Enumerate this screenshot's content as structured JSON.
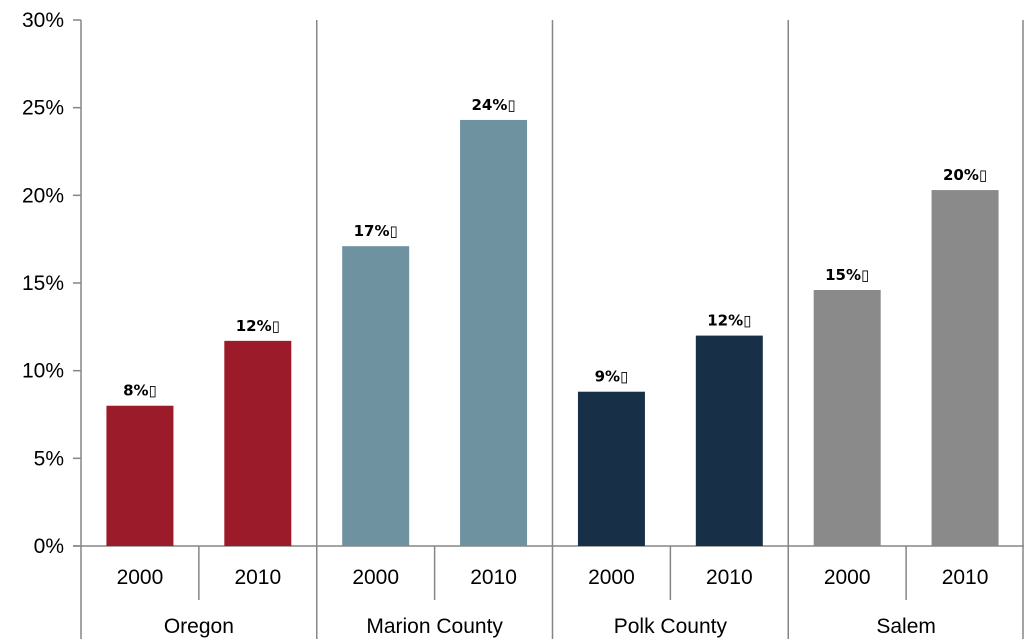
{
  "chart_data": {
    "type": "bar",
    "groups": [
      "Oregon",
      "Marion County",
      "Polk County",
      "Salem"
    ],
    "categories": [
      "2000",
      "2010"
    ],
    "values": [
      [
        8.0,
        11.7
      ],
      [
        17.1,
        24.3
      ],
      [
        8.8,
        12.0
      ],
      [
        14.6,
        20.3
      ]
    ],
    "data_labels": [
      [
        "8%▯",
        "12%▯"
      ],
      [
        "17%▯",
        "24%▯"
      ],
      [
        "9%▯",
        "12%▯"
      ],
      [
        "15%▯",
        "20%▯"
      ]
    ],
    "colors": [
      "#9c1b2b",
      "#6f92a1",
      "#182f48",
      "#8a8a8a"
    ],
    "title": "",
    "xlabel": "",
    "ylabel": "",
    "ylim": [
      0,
      30
    ],
    "y_ticks": [
      0,
      5,
      10,
      15,
      20,
      25,
      30
    ],
    "y_tick_labels": [
      "0%",
      "5%",
      "10%",
      "15%",
      "20%",
      "25%",
      "30%"
    ],
    "grid": false,
    "legend": "none"
  }
}
